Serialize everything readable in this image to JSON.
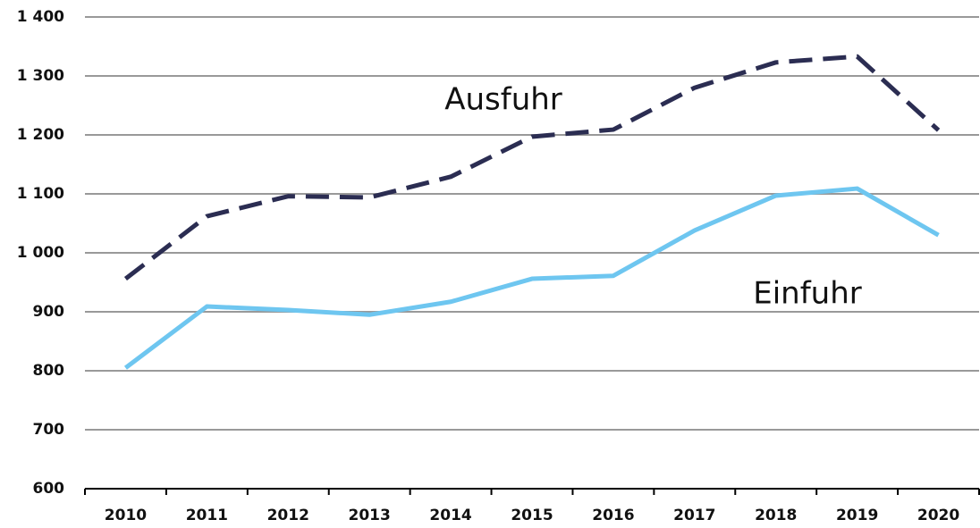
{
  "chart_data": {
    "type": "line",
    "categories": [
      "2010",
      "2011",
      "2012",
      "2013",
      "2014",
      "2015",
      "2016",
      "2017",
      "2018",
      "2019",
      "2020"
    ],
    "series": [
      {
        "name": "Ausfuhr",
        "color": "#2b2d52",
        "dashed": true,
        "values": [
          956,
          1062,
          1096,
          1094,
          1129,
          1197,
          1209,
          1280,
          1323,
          1333,
          1208
        ]
      },
      {
        "name": "Einfuhr",
        "color": "#6ec6f0",
        "dashed": false,
        "values": [
          805,
          909,
          903,
          895,
          917,
          956,
          961,
          1038,
          1097,
          1109,
          1030
        ]
      }
    ],
    "ylim": [
      600,
      1400
    ],
    "yticks": [
      600,
      700,
      800,
      900,
      {
        "value": 1000,
        "label": "1 000"
      },
      {
        "value": 1100,
        "label": "1 100"
      },
      {
        "value": 1200,
        "label": "1 200"
      },
      {
        "value": 1300,
        "label": "1 300"
      },
      {
        "value": 1400,
        "label": "1 400"
      }
    ],
    "grid": true
  }
}
